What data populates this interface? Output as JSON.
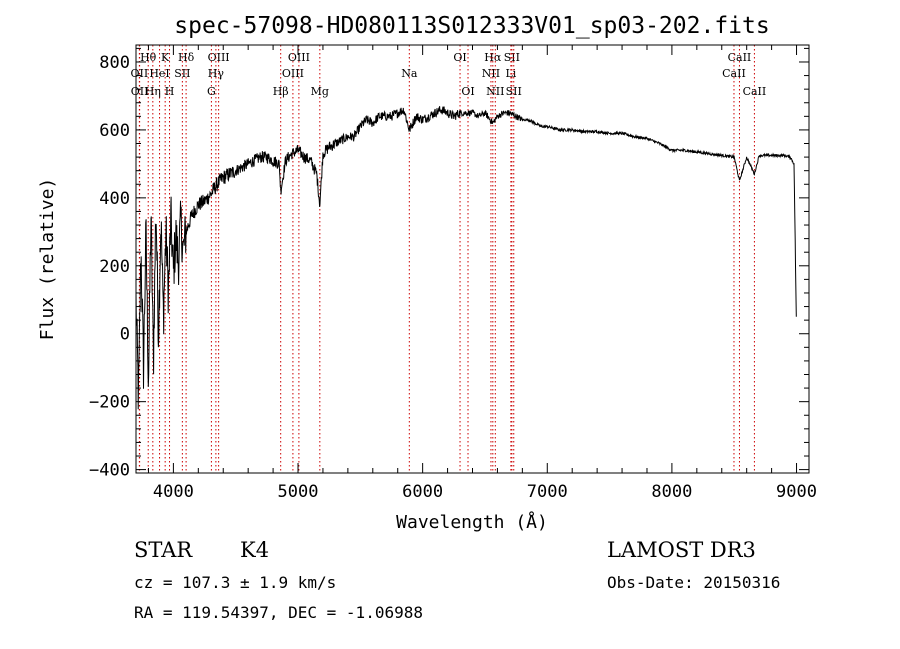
{
  "chart_data": {
    "type": "line",
    "title": "spec-57098-HD080113S012333V01_sp03-202.fits",
    "xlabel": "Wavelength (Å)",
    "ylabel": "Flux (relative)",
    "xlim": [
      3700,
      9100
    ],
    "ylim": [
      -410,
      850
    ],
    "xticks": [
      4000,
      5000,
      6000,
      7000,
      8000,
      9000
    ],
    "yticks": [
      -400,
      -200,
      0,
      200,
      400,
      600,
      800
    ],
    "series": [
      {
        "name": "flux",
        "x": [
          3700,
          3720,
          3740,
          3760,
          3780,
          3800,
          3820,
          3840,
          3860,
          3880,
          3900,
          3920,
          3940,
          3960,
          3980,
          4000,
          4020,
          4040,
          4060,
          4080,
          4100,
          4150,
          4200,
          4250,
          4300,
          4350,
          4400,
          4450,
          4500,
          4550,
          4600,
          4650,
          4700,
          4750,
          4800,
          4850,
          4861,
          4900,
          4950,
          5000,
          5050,
          5100,
          5150,
          5175,
          5200,
          5250,
          5300,
          5350,
          5400,
          5450,
          5500,
          5550,
          5600,
          5650,
          5700,
          5750,
          5800,
          5850,
          5893,
          5950,
          6000,
          6050,
          6100,
          6150,
          6200,
          6250,
          6300,
          6350,
          6400,
          6450,
          6500,
          6563,
          6600,
          6650,
          6700,
          6750,
          6800,
          6850,
          6900,
          6950,
          7000,
          7100,
          7200,
          7300,
          7400,
          7500,
          7600,
          7700,
          7800,
          7900,
          8000,
          8100,
          8200,
          8300,
          8400,
          8500,
          8542,
          8600,
          8662,
          8700,
          8800,
          8900,
          8950,
          8980,
          9000
        ],
        "y": [
          100,
          -200,
          250,
          -100,
          300,
          -150,
          350,
          -80,
          380,
          0,
          340,
          50,
          300,
          120,
          340,
          180,
          290,
          210,
          330,
          240,
          300,
          350,
          380,
          390,
          410,
          440,
          460,
          470,
          480,
          490,
          500,
          510,
          520,
          520,
          510,
          500,
          420,
          510,
          530,
          540,
          520,
          510,
          470,
          380,
          530,
          550,
          560,
          570,
          580,
          580,
          610,
          630,
          620,
          640,
          640,
          640,
          650,
          660,
          600,
          640,
          630,
          640,
          650,
          660,
          650,
          640,
          650,
          650,
          650,
          640,
          650,
          620,
          640,
          650,
          650,
          640,
          630,
          630,
          620,
          610,
          610,
          600,
          600,
          595,
          595,
          590,
          590,
          580,
          575,
          560,
          540,
          540,
          535,
          530,
          525,
          520,
          450,
          520,
          470,
          525,
          525,
          525,
          520,
          500,
          0
        ]
      }
    ],
    "spectral_lines": [
      {
        "label": "Hθ",
        "x": 3798,
        "row": 1
      },
      {
        "label": "OII",
        "x": 3727,
        "row": 2
      },
      {
        "label": "OII",
        "x": 3729,
        "row": 3
      },
      {
        "label": "K",
        "x": 3934,
        "row": 1
      },
      {
        "label": "HeI",
        "x": 3889,
        "row": 2
      },
      {
        "label": "Hη",
        "x": 3835,
        "row": 3
      },
      {
        "label": "Hδ",
        "x": 4102,
        "row": 1
      },
      {
        "label": "SII",
        "x": 4072,
        "row": 2
      },
      {
        "label": "H",
        "x": 3969,
        "row": 3
      },
      {
        "label": "OIII",
        "x": 4363,
        "row": 1
      },
      {
        "label": "Hγ",
        "x": 4341,
        "row": 2
      },
      {
        "label": "G",
        "x": 4305,
        "row": 3
      },
      {
        "label": "Hβ",
        "x": 4861,
        "row": 3
      },
      {
        "label": "OIII",
        "x": 5007,
        "row": 1
      },
      {
        "label": "OIII",
        "x": 4959,
        "row": 2
      },
      {
        "label": "Mg",
        "x": 5175,
        "row": 3
      },
      {
        "label": "Na",
        "x": 5893,
        "row": 2
      },
      {
        "label": "OI",
        "x": 6300,
        "row": 1
      },
      {
        "label": "OI",
        "x": 6364,
        "row": 3
      },
      {
        "label": "Hα",
        "x": 6563,
        "row": 1
      },
      {
        "label": "SII",
        "x": 6716,
        "row": 1
      },
      {
        "label": "NII",
        "x": 6548,
        "row": 2
      },
      {
        "label": "Li",
        "x": 6708,
        "row": 2
      },
      {
        "label": "NII",
        "x": 6583,
        "row": 3
      },
      {
        "label": "SII",
        "x": 6731,
        "row": 3
      },
      {
        "label": "CaII",
        "x": 8542,
        "row": 1
      },
      {
        "label": "CaII",
        "x": 8498,
        "row": 2
      },
      {
        "label": "CaII",
        "x": 8662,
        "row": 3
      }
    ]
  },
  "info": {
    "object_class": "STAR",
    "subclass": "K4",
    "survey": "LAMOST DR3",
    "cz": "cz = 107.3 ± 1.9 km/s",
    "obs_date": "Obs-Date: 20150316",
    "coords": "RA = 119.54397, DEC =  -1.06988"
  },
  "colors": {
    "line_marker": "#cc0000",
    "spectrum": "#000000"
  }
}
